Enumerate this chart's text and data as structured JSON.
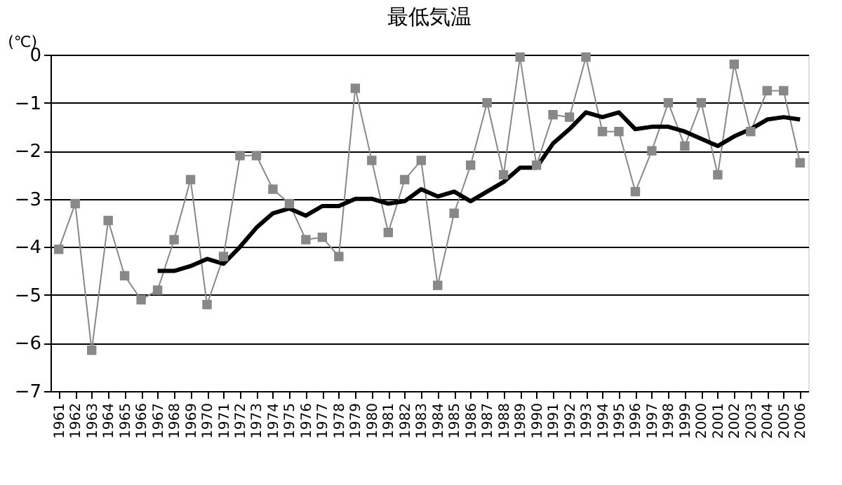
{
  "chart_data": {
    "type": "line",
    "title": "最低気温",
    "ylabel": "(℃)",
    "categories": [
      "1961",
      "1962",
      "1963",
      "1964",
      "1965",
      "1966",
      "1967",
      "1968",
      "1969",
      "1970",
      "1971",
      "1972",
      "1973",
      "1974",
      "1975",
      "1976",
      "1977",
      "1978",
      "1979",
      "1980",
      "1981",
      "1982",
      "1983",
      "1984",
      "1985",
      "1986",
      "1987",
      "1988",
      "1989",
      "1990",
      "1991",
      "1992",
      "1993",
      "1994",
      "1995",
      "1996",
      "1997",
      "1998",
      "1999",
      "2000",
      "2001",
      "2002",
      "2003",
      "2004",
      "2005",
      "2006"
    ],
    "series": [
      {
        "color": "#888888",
        "marker": "square",
        "values": [
          -4.05,
          -3.1,
          -6.15,
          -3.45,
          -4.6,
          -5.1,
          -4.9,
          -3.85,
          -2.6,
          -5.2,
          -4.2,
          -2.1,
          -2.1,
          -2.8,
          -3.1,
          -3.85,
          -3.8,
          -4.2,
          -0.7,
          -2.2,
          -3.7,
          -2.6,
          -2.2,
          -4.8,
          -3.3,
          -2.3,
          -1.0,
          -2.5,
          -0.05,
          -2.3,
          -1.25,
          -1.3,
          -0.05,
          -1.6,
          -1.6,
          -2.85,
          -2.0,
          -1.0,
          -1.9,
          -1.0,
          -2.5,
          -0.2,
          -1.6,
          -0.75,
          -0.75,
          -2.25
        ]
      },
      {
        "color": "#000000",
        "marker": "none",
        "values": [
          null,
          null,
          null,
          null,
          null,
          null,
          -4.5,
          -4.5,
          -4.4,
          -4.25,
          -4.35,
          -4.0,
          -3.6,
          -3.3,
          -3.2,
          -3.35,
          -3.15,
          -3.15,
          -3.0,
          -3.0,
          -3.1,
          -3.05,
          -2.8,
          -2.95,
          -2.85,
          -3.05,
          -2.85,
          -2.65,
          -2.35,
          -2.35,
          -1.85,
          -1.55,
          -1.2,
          -1.3,
          -1.2,
          -1.55,
          -1.5,
          -1.5,
          -1.6,
          -1.75,
          -1.9,
          -1.7,
          -1.55,
          -1.35,
          -1.3,
          -1.35
        ]
      }
    ],
    "ylim": [
      -7,
      0
    ],
    "yticks": [
      -7,
      -6,
      -5,
      -4,
      -3,
      -2,
      -1,
      0
    ],
    "grid": "y"
  }
}
